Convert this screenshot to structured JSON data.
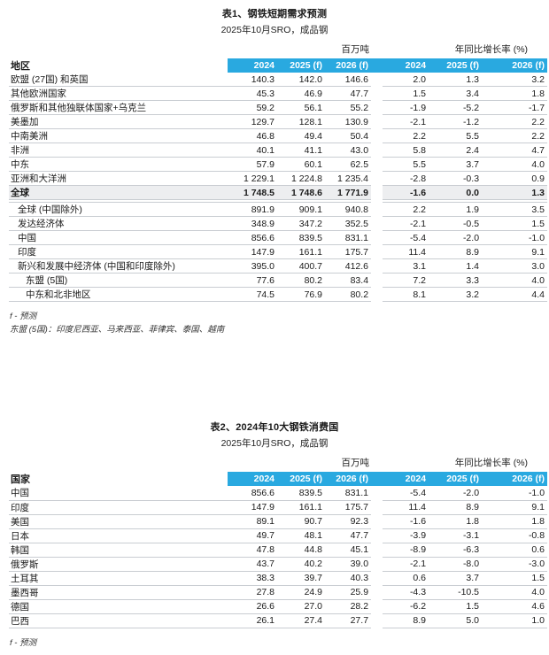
{
  "colors": {
    "accent": "#29A9E0",
    "highlight_row": "#EDEEF0",
    "row_line": "#C9CDD2"
  },
  "tables": [
    {
      "title": "表1、钢铁短期需求预测",
      "subtitle": "2025年10月SRO，成品钢",
      "group_headers": [
        "百万吨",
        "年同比增长率 (%)"
      ],
      "row_label_header": "地区",
      "col_headers": [
        "2024",
        "2025 (f)",
        "2026 (f)",
        "2024",
        "2025 (f)",
        "2026 (f)"
      ],
      "sections": [
        {
          "rows": [
            {
              "label": "欧盟 (27国) 和英国",
              "values": [
                "140.3",
                "142.0",
                "146.6",
                "2.0",
                "1.3",
                "3.2"
              ]
            },
            {
              "label": "其他欧洲国家",
              "values": [
                "45.3",
                "46.9",
                "47.7",
                "1.5",
                "3.4",
                "1.8"
              ]
            },
            {
              "label": "俄罗斯和其他独联体国家+乌克兰",
              "values": [
                "59.2",
                "56.1",
                "55.2",
                "-1.9",
                "-5.2",
                "-1.7"
              ]
            },
            {
              "label": "美墨加",
              "values": [
                "129.7",
                "128.1",
                "130.9",
                "-2.1",
                "-1.2",
                "2.2"
              ]
            },
            {
              "label": "中南美洲",
              "values": [
                "46.8",
                "49.4",
                "50.4",
                "2.2",
                "5.5",
                "2.2"
              ]
            },
            {
              "label": "非洲",
              "values": [
                "40.1",
                "41.1",
                "43.0",
                "5.8",
                "2.4",
                "4.7"
              ]
            },
            {
              "label": "中东",
              "values": [
                "57.9",
                "60.1",
                "62.5",
                "5.5",
                "3.7",
                "4.0"
              ]
            },
            {
              "label": "亚洲和大洋洲",
              "values": [
                "1 229.1",
                "1 224.8",
                "1 235.4",
                "-2.8",
                "-0.3",
                "0.9"
              ]
            },
            {
              "label": "全球",
              "bold": true,
              "highlight": true,
              "values": [
                "1 748.5",
                "1 748.6",
                "1 771.9",
                "-1.6",
                "0.0",
                "1.3"
              ]
            }
          ]
        },
        {
          "rows": [
            {
              "label": "全球 (中国除外)",
              "indent": 1,
              "values": [
                "891.9",
                "909.1",
                "940.8",
                "2.2",
                "1.9",
                "3.5"
              ]
            },
            {
              "label": "发达经济体",
              "indent": 1,
              "values": [
                "348.9",
                "347.2",
                "352.5",
                "-2.1",
                "-0.5",
                "1.5"
              ]
            },
            {
              "label": "中国",
              "indent": 1,
              "values": [
                "856.6",
                "839.5",
                "831.1",
                "-5.4",
                "-2.0",
                "-1.0"
              ]
            },
            {
              "label": "印度",
              "indent": 1,
              "values": [
                "147.9",
                "161.1",
                "175.7",
                "11.4",
                "8.9",
                "9.1"
              ]
            },
            {
              "label": "新兴和发展中经济体 (中国和印度除外)",
              "indent": 1,
              "values": [
                "395.0",
                "400.7",
                "412.6",
                "3.1",
                "1.4",
                "3.0"
              ]
            },
            {
              "label": "东盟 (5国)",
              "indent": 2,
              "values": [
                "77.6",
                "80.2",
                "83.4",
                "7.2",
                "3.3",
                "4.0"
              ]
            },
            {
              "label": "中东和北非地区",
              "indent": 2,
              "values": [
                "74.5",
                "76.9",
                "80.2",
                "8.1",
                "3.2",
                "4.4"
              ]
            }
          ]
        }
      ],
      "footnotes": [
        "f - 预测",
        "东盟 (5国)：印度尼西亚、马来西亚、菲律宾、泰国、越南"
      ]
    },
    {
      "title": "表2、2024年10大钢铁消费国",
      "subtitle": "2025年10月SRO，成品钢",
      "group_headers": [
        "百万吨",
        "年同比增长率 (%)"
      ],
      "row_label_header": "国家",
      "col_headers": [
        "2024",
        "2025 (f)",
        "2026 (f)",
        "2024",
        "2025 (f)",
        "2026 (f)"
      ],
      "sections": [
        {
          "rows": [
            {
              "label": "中国",
              "values": [
                "856.6",
                "839.5",
                "831.1",
                "-5.4",
                "-2.0",
                "-1.0"
              ]
            },
            {
              "label": "印度",
              "values": [
                "147.9",
                "161.1",
                "175.7",
                "11.4",
                "8.9",
                "9.1"
              ]
            },
            {
              "label": "美国",
              "values": [
                "89.1",
                "90.7",
                "92.3",
                "-1.6",
                "1.8",
                "1.8"
              ]
            },
            {
              "label": "日本",
              "values": [
                "49.7",
                "48.1",
                "47.7",
                "-3.9",
                "-3.1",
                "-0.8"
              ]
            },
            {
              "label": "韩国",
              "values": [
                "47.8",
                "44.8",
                "45.1",
                "-8.9",
                "-6.3",
                "0.6"
              ]
            },
            {
              "label": "俄罗斯",
              "values": [
                "43.7",
                "40.2",
                "39.0",
                "-2.1",
                "-8.0",
                "-3.0"
              ]
            },
            {
              "label": "土耳其",
              "values": [
                "38.3",
                "39.7",
                "40.3",
                "0.6",
                "3.7",
                "1.5"
              ]
            },
            {
              "label": "墨西哥",
              "values": [
                "27.8",
                "24.9",
                "25.9",
                "-4.3",
                "-10.5",
                "4.0"
              ]
            },
            {
              "label": "德国",
              "values": [
                "26.6",
                "27.0",
                "28.2",
                "-6.2",
                "1.5",
                "4.6"
              ]
            },
            {
              "label": "巴西",
              "values": [
                "26.1",
                "27.4",
                "27.7",
                "8.9",
                "5.0",
                "1.0"
              ]
            }
          ]
        }
      ],
      "footnotes": [
        "f - 预测"
      ]
    }
  ]
}
